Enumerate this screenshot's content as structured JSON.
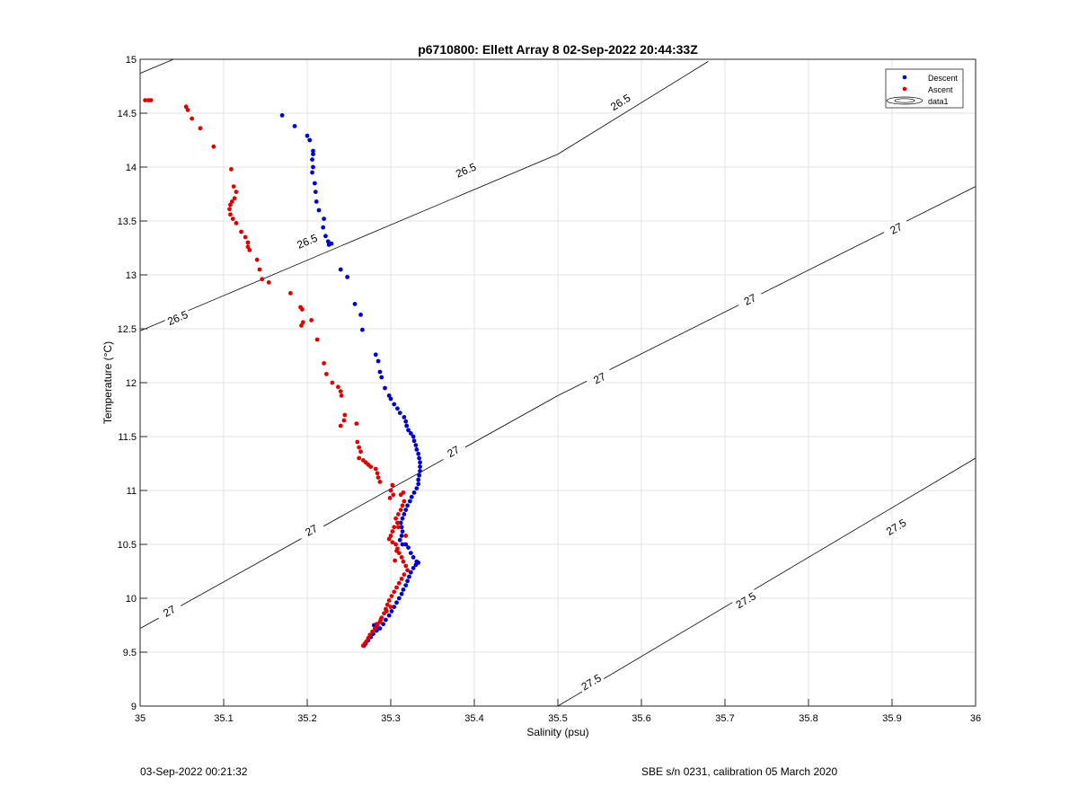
{
  "chart_data": {
    "type": "scatter",
    "title": "p6710800: Ellett Array 8 02-Sep-2022 20:44:33Z",
    "xlabel": "Salinity (psu)",
    "ylabel": "Temperature (°C)",
    "xlim": [
      35,
      36
    ],
    "ylim": [
      9,
      15
    ],
    "xticks": [
      "35",
      "35.1",
      "35.2",
      "35.3",
      "35.4",
      "35.5",
      "35.6",
      "35.7",
      "35.8",
      "35.9",
      "36"
    ],
    "yticks": [
      "9",
      "9.5",
      "10",
      "10.5",
      "11",
      "11.5",
      "12",
      "12.5",
      "13",
      "13.5",
      "14",
      "14.5",
      "15"
    ],
    "grid": true,
    "legend_position": "top-right",
    "legend": [
      {
        "label": "Descent",
        "color": "#0000cc",
        "marker": "dot"
      },
      {
        "label": "Ascent",
        "color": "#dd0000",
        "marker": "dot"
      },
      {
        "label": "data1",
        "color": "#000000",
        "marker": "contour"
      }
    ],
    "series": [
      {
        "name": "Descent",
        "color": "#0000cc",
        "points": [
          [
            35.17,
            14.48
          ],
          [
            35.185,
            14.38
          ],
          [
            35.2,
            14.29
          ],
          [
            35.203,
            14.25
          ],
          [
            35.207,
            14.15
          ],
          [
            35.207,
            14.12
          ],
          [
            35.206,
            14.07
          ],
          [
            35.207,
            14.0
          ],
          [
            35.206,
            13.95
          ],
          [
            35.209,
            13.85
          ],
          [
            35.21,
            13.77
          ],
          [
            35.211,
            13.68
          ],
          [
            35.214,
            13.6
          ],
          [
            35.22,
            13.52
          ],
          [
            35.219,
            13.44
          ],
          [
            35.222,
            13.36
          ],
          [
            35.225,
            13.31
          ],
          [
            35.226,
            13.28
          ],
          [
            35.229,
            13.29
          ],
          [
            35.24,
            13.05
          ],
          [
            35.248,
            12.98
          ],
          [
            35.257,
            12.73
          ],
          [
            35.264,
            12.63
          ],
          [
            35.266,
            12.49
          ],
          [
            35.282,
            12.26
          ],
          [
            35.285,
            12.2
          ],
          [
            35.287,
            12.1
          ],
          [
            35.289,
            12.05
          ],
          [
            35.293,
            11.95
          ],
          [
            35.298,
            11.88
          ],
          [
            35.3,
            11.85
          ],
          [
            35.304,
            11.8
          ],
          [
            35.308,
            11.76
          ],
          [
            35.311,
            11.72
          ],
          [
            35.316,
            11.68
          ],
          [
            35.318,
            11.64
          ],
          [
            35.319,
            11.6
          ],
          [
            35.321,
            11.56
          ],
          [
            35.324,
            11.53
          ],
          [
            35.327,
            11.5
          ],
          [
            35.328,
            11.46
          ],
          [
            35.33,
            11.42
          ],
          [
            35.331,
            11.38
          ],
          [
            35.333,
            11.34
          ],
          [
            35.334,
            11.3
          ],
          [
            35.335,
            11.26
          ],
          [
            35.335,
            11.22
          ],
          [
            35.335,
            11.18
          ],
          [
            35.334,
            11.14
          ],
          [
            35.333,
            11.1
          ],
          [
            35.333,
            11.06
          ],
          [
            35.331,
            11.02
          ],
          [
            35.328,
            10.98
          ],
          [
            35.325,
            10.94
          ],
          [
            35.323,
            10.9
          ],
          [
            35.32,
            10.86
          ],
          [
            35.318,
            10.82
          ],
          [
            35.316,
            10.78
          ],
          [
            35.314,
            10.74
          ],
          [
            35.312,
            10.7
          ],
          [
            35.313,
            10.66
          ],
          [
            35.314,
            10.62
          ],
          [
            35.313,
            10.58
          ],
          [
            35.311,
            10.54
          ],
          [
            35.314,
            10.5
          ],
          [
            35.318,
            10.5
          ],
          [
            35.321,
            10.47
          ],
          [
            35.324,
            10.42
          ],
          [
            35.327,
            10.38
          ],
          [
            35.331,
            10.34
          ],
          [
            35.333,
            10.33
          ],
          [
            35.33,
            10.31
          ],
          [
            35.327,
            10.28
          ],
          [
            35.324,
            10.24
          ],
          [
            35.322,
            10.2
          ],
          [
            35.32,
            10.16
          ],
          [
            35.318,
            10.12
          ],
          [
            35.315,
            10.08
          ],
          [
            35.313,
            10.04
          ],
          [
            35.31,
            10.0
          ],
          [
            35.307,
            9.96
          ],
          [
            35.304,
            9.92
          ],
          [
            35.301,
            9.88
          ],
          [
            35.298,
            9.84
          ],
          [
            35.294,
            9.8
          ],
          [
            35.291,
            9.76
          ],
          [
            35.287,
            9.72
          ],
          [
            35.283,
            9.7
          ],
          [
            35.279,
            9.67
          ],
          [
            35.276,
            9.64
          ],
          [
            35.273,
            9.61
          ],
          [
            35.27,
            9.58
          ],
          [
            35.268,
            9.56
          ],
          [
            35.28,
            9.75
          ],
          [
            35.285,
            9.72
          ]
        ]
      },
      {
        "name": "Ascent",
        "color": "#dd0000",
        "points": [
          [
            35.006,
            14.62
          ],
          [
            35.01,
            14.62
          ],
          [
            35.013,
            14.62
          ],
          [
            35.055,
            14.56
          ],
          [
            35.057,
            14.53
          ],
          [
            35.062,
            14.45
          ],
          [
            35.072,
            14.36
          ],
          [
            35.088,
            14.19
          ],
          [
            35.109,
            13.98
          ],
          [
            35.112,
            13.82
          ],
          [
            35.115,
            13.77
          ],
          [
            35.113,
            13.71
          ],
          [
            35.11,
            13.68
          ],
          [
            35.108,
            13.65
          ],
          [
            35.107,
            13.61
          ],
          [
            35.108,
            13.56
          ],
          [
            35.111,
            13.52
          ],
          [
            35.115,
            13.48
          ],
          [
            35.121,
            13.4
          ],
          [
            35.126,
            13.35
          ],
          [
            35.129,
            13.3
          ],
          [
            35.129,
            13.26
          ],
          [
            35.131,
            13.23
          ],
          [
            35.14,
            13.14
          ],
          [
            35.143,
            13.05
          ],
          [
            35.146,
            12.96
          ],
          [
            35.154,
            12.93
          ],
          [
            35.18,
            12.83
          ],
          [
            35.192,
            12.7
          ],
          [
            35.194,
            12.68
          ],
          [
            35.195,
            12.56
          ],
          [
            35.193,
            12.53
          ],
          [
            35.205,
            12.58
          ],
          [
            35.212,
            12.4
          ],
          [
            35.22,
            12.18
          ],
          [
            35.223,
            12.08
          ],
          [
            35.23,
            12.0
          ],
          [
            35.237,
            11.96
          ],
          [
            35.24,
            11.92
          ],
          [
            35.241,
            11.88
          ],
          [
            35.245,
            11.7
          ],
          [
            35.244,
            11.65
          ],
          [
            35.24,
            11.6
          ],
          [
            35.259,
            11.62
          ],
          [
            35.26,
            11.45
          ],
          [
            35.262,
            11.4
          ],
          [
            35.264,
            11.36
          ],
          [
            35.262,
            11.3
          ],
          [
            35.267,
            11.28
          ],
          [
            35.27,
            11.26
          ],
          [
            35.273,
            11.24
          ],
          [
            35.276,
            11.22
          ],
          [
            35.282,
            11.2
          ],
          [
            35.284,
            11.16
          ],
          [
            35.285,
            11.12
          ],
          [
            35.287,
            11.08
          ],
          [
            35.302,
            11.05
          ],
          [
            35.3,
            11.0
          ],
          [
            35.303,
            10.96
          ],
          [
            35.299,
            10.93
          ],
          [
            35.312,
            10.96
          ],
          [
            35.315,
            10.98
          ],
          [
            35.316,
            10.9
          ],
          [
            35.314,
            10.86
          ],
          [
            35.312,
            10.82
          ],
          [
            35.309,
            10.78
          ],
          [
            35.306,
            10.74
          ],
          [
            35.308,
            10.7
          ],
          [
            35.304,
            10.66
          ],
          [
            35.302,
            10.62
          ],
          [
            35.3,
            10.58
          ],
          [
            35.298,
            10.55
          ],
          [
            35.302,
            10.52
          ],
          [
            35.306,
            10.5
          ],
          [
            35.308,
            10.46
          ],
          [
            35.31,
            10.42
          ],
          [
            35.313,
            10.38
          ],
          [
            35.315,
            10.34
          ],
          [
            35.318,
            10.3
          ],
          [
            35.32,
            10.26
          ],
          [
            35.316,
            10.22
          ],
          [
            35.313,
            10.18
          ],
          [
            35.31,
            10.14
          ],
          [
            35.307,
            10.1
          ],
          [
            35.304,
            10.06
          ],
          [
            35.301,
            10.02
          ],
          [
            35.298,
            9.98
          ],
          [
            35.296,
            9.94
          ],
          [
            35.294,
            9.9
          ],
          [
            35.292,
            9.86
          ],
          [
            35.289,
            9.82
          ],
          [
            35.287,
            9.78
          ],
          [
            35.284,
            9.75
          ],
          [
            35.281,
            9.72
          ],
          [
            35.278,
            9.69
          ],
          [
            35.275,
            9.66
          ],
          [
            35.273,
            9.63
          ],
          [
            35.271,
            9.6
          ],
          [
            35.269,
            9.58
          ],
          [
            35.267,
            9.56
          ],
          [
            35.283,
            9.76
          ],
          [
            35.288,
            9.8
          ],
          [
            35.295,
            9.88
          ],
          [
            35.3,
            9.92
          ],
          [
            35.305,
            10.35
          ],
          [
            35.307,
            10.44
          ],
          [
            35.309,
            10.66
          ],
          [
            35.318,
            10.58
          ]
        ]
      }
    ],
    "isopycnals": [
      {
        "label": "26.5",
        "line": [
          [
            35.0,
            12.48
          ],
          [
            35.5,
            14.12
          ],
          [
            35.68,
            14.98
          ]
        ],
        "labels": [
          [
            35.045,
            12.6
          ],
          [
            35.2,
            13.31
          ],
          [
            35.39,
            13.97
          ],
          [
            35.575,
            14.6
          ]
        ]
      },
      {
        "label": "27",
        "line": [
          [
            35.0,
            9.72
          ],
          [
            35.5,
            11.88
          ],
          [
            36.0,
            13.82
          ]
        ],
        "labels": [
          [
            35.035,
            9.88
          ],
          [
            35.205,
            10.63
          ],
          [
            35.375,
            11.36
          ],
          [
            35.55,
            12.04
          ],
          [
            35.73,
            12.77
          ],
          [
            35.905,
            13.43
          ]
        ]
      },
      {
        "label": "27.5",
        "line": [
          [
            35.5,
            9.0
          ],
          [
            36.0,
            11.3
          ]
        ],
        "labels": [
          [
            35.54,
            9.22
          ],
          [
            35.725,
            9.98
          ],
          [
            35.905,
            10.66
          ]
        ]
      },
      {
        "label": "",
        "line": [
          [
            35.0,
            14.87
          ],
          [
            35.04,
            15.0
          ]
        ],
        "labels": []
      }
    ]
  },
  "footer": {
    "left": "03-Sep-2022 00:21:32",
    "right": "SBE s/n 0231, calibration 05 March 2020"
  }
}
